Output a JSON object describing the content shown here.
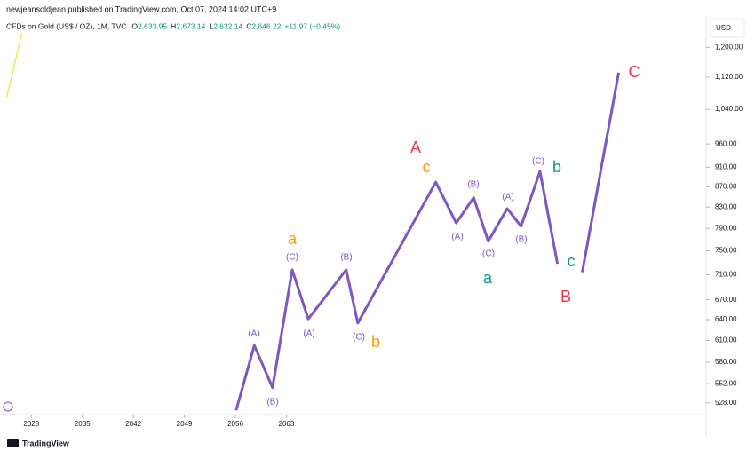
{
  "header": {
    "byline": "newjeansoldjean published on TradingView.com, Oct 07, 2024 14:02 UTC+9",
    "symbol": "CFDs on Gold (US$ / OZ), 1M, TVC",
    "ohlc": [
      {
        "label": "O",
        "value": "2,633.95"
      },
      {
        "label": "H",
        "value": "2,673.14"
      },
      {
        "label": "L",
        "value": "2,632.14"
      },
      {
        "label": "C",
        "value": "2,646.22"
      }
    ],
    "change": "+11.97 (+0.45%)",
    "currency": "USD"
  },
  "footer": {
    "brand": "TradingView"
  },
  "chart_data": {
    "type": "line",
    "log_scale": true,
    "xlim": [
      2023.7,
      2120.6
    ],
    "xticks": [
      2028,
      2035,
      2042,
      2049,
      2056,
      2063
    ],
    "ylim": [
      514,
      1290
    ],
    "yticks": [
      {
        "value": 528,
        "label": "528.00"
      },
      {
        "value": 552,
        "label": "552.00"
      },
      {
        "value": 580,
        "label": "580.00"
      },
      {
        "value": 610,
        "label": "610.00"
      },
      {
        "value": 640,
        "label": "640.00"
      },
      {
        "value": 670,
        "label": "670.00"
      },
      {
        "value": 710,
        "label": "710.00"
      },
      {
        "value": 750,
        "label": "750.00"
      },
      {
        "value": 790,
        "label": "790.00"
      },
      {
        "value": 830,
        "label": "830.00"
      },
      {
        "value": 870,
        "label": "870.00"
      },
      {
        "value": 910,
        "label": "910.00"
      },
      {
        "value": 960,
        "label": "960.00"
      },
      {
        "value": 1040,
        "label": "1,040.00"
      },
      {
        "value": 1120,
        "label": "1,120.00"
      },
      {
        "value": 1200,
        "label": "1,200.00"
      }
    ],
    "series": [
      {
        "color": "#7e57c2",
        "x": [
          2056.1,
          2058.6,
          2061.1,
          2063.8,
          2066.0,
          2071.2,
          2072.8,
          2083.5,
          2086.3,
          2088.7,
          2090.7,
          2093.3,
          2095.2,
          2097.8,
          2100.2,
          2102,
          2103.6,
          2108.6
        ],
        "values": [
          519,
          603,
          547,
          718,
          641,
          718,
          635,
          879,
          800,
          848,
          767,
          827,
          794,
          901,
          728,
          null,
          714,
          1132
        ]
      },
      {
        "color": "#f7e35a",
        "x": [
          2024.6,
          2026.7
        ],
        "values": [
          1069,
          1238
        ]
      }
    ],
    "annotations": [
      {
        "text": "a",
        "color": "#ff9800"
      },
      {
        "text": "(C)",
        "color": "#7e57c2"
      },
      {
        "text": "(A)",
        "color": "#7e57c2"
      },
      {
        "text": "(B)",
        "color": "#7e57c2"
      },
      {
        "text": "(A)",
        "color": "#7e57c2"
      },
      {
        "text": "(B)",
        "color": "#7e57c2"
      },
      {
        "text": "(C)",
        "color": "#7e57c2"
      },
      {
        "text": "b",
        "color": "#ff9800"
      },
      {
        "text": "A",
        "color": "#f23645"
      },
      {
        "text": "c",
        "color": "#ff9800"
      },
      {
        "text": "(B)",
        "color": "#7e57c2"
      },
      {
        "text": "(A)",
        "color": "#7e57c2"
      },
      {
        "text": "(C)",
        "color": "#7e57c2"
      },
      {
        "text": "a",
        "color": "#089981"
      },
      {
        "text": "(A)",
        "color": "#7e57c2"
      },
      {
        "text": "(B)",
        "color": "#7e57c2"
      },
      {
        "text": "(C)",
        "color": "#7e57c2"
      },
      {
        "text": "b",
        "color": "#089981"
      },
      {
        "text": "c",
        "color": "#089981"
      },
      {
        "text": "B",
        "color": "#f23645"
      },
      {
        "text": "C",
        "color": "#f23645"
      }
    ]
  }
}
